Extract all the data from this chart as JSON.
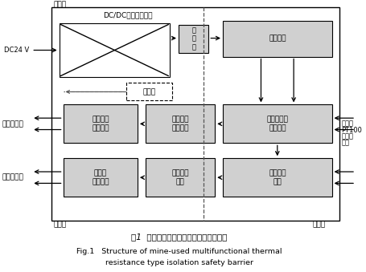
{
  "title_cn": "图1  矿用多功能热电阻型隔离安全栅结构",
  "title_en_line1": "Fig.1   Structure of mine-used multifunctional thermal",
  "title_en_line2": "resistance type isolation safety barrier",
  "bg_color": "#ffffff",
  "box_color": "#d0d0d0",
  "box_edge": "#000000",
  "text_color": "#000000",
  "dashed_color": "#555555",
  "arrow_color": "#000000"
}
